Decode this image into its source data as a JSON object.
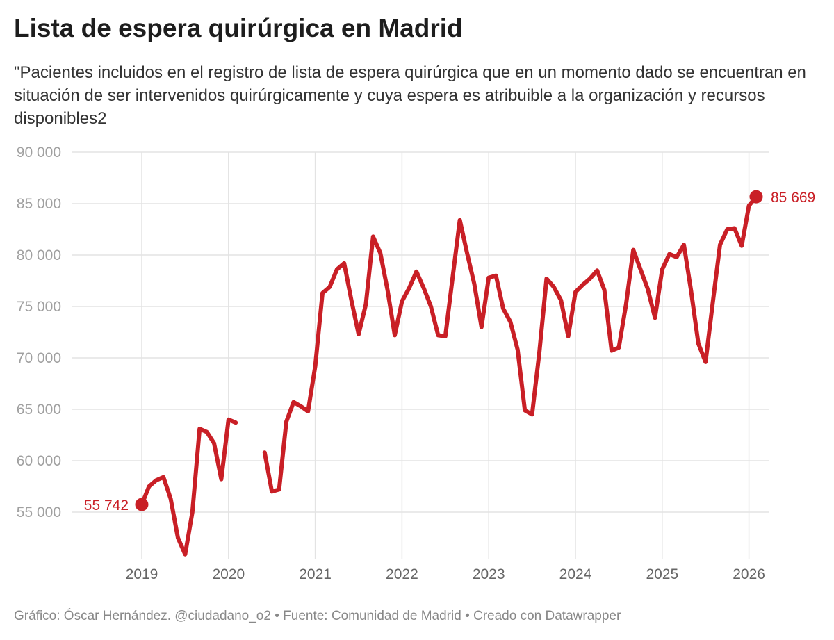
{
  "title": "Lista de espera quirúrgica en Madrid",
  "subtitle": "\"Pacientes incluidos en el registro de lista de espera quirúrgica que en un momento dado se encuentran en situación de ser intervenidos quirúrgicamente y cuya espera es atribuible a la organización y recursos disponibles2",
  "footer": "Gráfico: Óscar Hernández. @ciudadano_o2 • Fuente: Comunidad de Madrid  • Creado con Datawrapper",
  "chart_data": {
    "type": "line",
    "title": "",
    "xlabel": "",
    "ylabel": "",
    "ylim": [
      50000,
      90000
    ],
    "y_ticks": [
      55000,
      60000,
      65000,
      70000,
      75000,
      80000,
      85000,
      90000
    ],
    "y_tick_labels": [
      "55 000",
      "60 000",
      "65 000",
      "70 000",
      "75 000",
      "80 000",
      "85 000",
      "90 000"
    ],
    "xlim": [
      "2019-01",
      "2026-02"
    ],
    "x_ticks": [
      "2019-01",
      "2020-01",
      "2021-01",
      "2022-01",
      "2023-01",
      "2024-01",
      "2025-01",
      "2026-01"
    ],
    "x_tick_labels": [
      "2019",
      "2020",
      "2021",
      "2022",
      "2023",
      "2024",
      "2025",
      "2026"
    ],
    "grid": true,
    "line_color": "#c91f26",
    "series": [
      {
        "name": "",
        "points": [
          [
            "2019-01",
            55742
          ],
          [
            "2019-02",
            57500
          ],
          [
            "2019-03",
            58100
          ],
          [
            "2019-04",
            58400
          ],
          [
            "2019-05",
            56300
          ],
          [
            "2019-06",
            52500
          ],
          [
            "2019-07",
            50900
          ],
          [
            "2019-08",
            55000
          ],
          [
            "2019-09",
            63100
          ],
          [
            "2019-10",
            62800
          ],
          [
            "2019-11",
            61700
          ],
          [
            "2019-12",
            58200
          ],
          [
            "2020-01",
            64000
          ],
          [
            "2020-02",
            63700
          ],
          [
            "2020-03",
            null
          ],
          [
            "2020-04",
            null
          ],
          [
            "2020-05",
            null
          ],
          [
            "2020-06",
            60800
          ],
          [
            "2020-07",
            57000
          ],
          [
            "2020-08",
            57200
          ],
          [
            "2020-09",
            63800
          ],
          [
            "2020-10",
            65700
          ],
          [
            "2020-11",
            65300
          ],
          [
            "2020-12",
            64800
          ],
          [
            "2021-01",
            69200
          ],
          [
            "2021-02",
            76300
          ],
          [
            "2021-03",
            76900
          ],
          [
            "2021-04",
            78600
          ],
          [
            "2021-05",
            79200
          ],
          [
            "2021-06",
            75600
          ],
          [
            "2021-07",
            72300
          ],
          [
            "2021-08",
            75200
          ],
          [
            "2021-09",
            81800
          ],
          [
            "2021-10",
            80200
          ],
          [
            "2021-11",
            76600
          ],
          [
            "2021-12",
            72200
          ],
          [
            "2022-01",
            75500
          ],
          [
            "2022-02",
            76800
          ],
          [
            "2022-03",
            78400
          ],
          [
            "2022-04",
            76800
          ],
          [
            "2022-05",
            75000
          ],
          [
            "2022-06",
            72200
          ],
          [
            "2022-07",
            72100
          ],
          [
            "2022-08",
            77800
          ],
          [
            "2022-09",
            83400
          ],
          [
            "2022-10",
            80200
          ],
          [
            "2022-11",
            77200
          ],
          [
            "2022-12",
            73000
          ],
          [
            "2023-01",
            77800
          ],
          [
            "2023-02",
            78000
          ],
          [
            "2023-03",
            74800
          ],
          [
            "2023-04",
            73500
          ],
          [
            "2023-05",
            70800
          ],
          [
            "2023-06",
            64900
          ],
          [
            "2023-07",
            64500
          ],
          [
            "2023-08",
            70500
          ],
          [
            "2023-09",
            77700
          ],
          [
            "2023-10",
            76900
          ],
          [
            "2023-11",
            75600
          ],
          [
            "2023-12",
            72100
          ],
          [
            "2024-01",
            76400
          ],
          [
            "2024-02",
            77100
          ],
          [
            "2024-03",
            77700
          ],
          [
            "2024-04",
            78500
          ],
          [
            "2024-05",
            76600
          ],
          [
            "2024-06",
            70700
          ],
          [
            "2024-07",
            71000
          ],
          [
            "2024-08",
            75200
          ],
          [
            "2024-09",
            80500
          ],
          [
            "2024-10",
            78600
          ],
          [
            "2024-11",
            76700
          ],
          [
            "2024-12",
            73900
          ],
          [
            "2025-01",
            78600
          ],
          [
            "2025-02",
            80100
          ],
          [
            "2025-03",
            79800
          ],
          [
            "2025-04",
            81000
          ],
          [
            "2025-05",
            76500
          ],
          [
            "2025-06",
            71400
          ],
          [
            "2025-07",
            69600
          ],
          [
            "2025-08",
            75400
          ],
          [
            "2025-09",
            81000
          ],
          [
            "2025-10",
            82500
          ],
          [
            "2025-11",
            82600
          ],
          [
            "2025-12",
            80900
          ],
          [
            "2026-01",
            84800
          ],
          [
            "2026-02",
            85669
          ]
        ]
      }
    ],
    "annotations": [
      {
        "x": "2019-01",
        "y": 55742,
        "label": "55 742"
      },
      {
        "x": "2026-02",
        "y": 85669,
        "label": "85 669"
      }
    ]
  }
}
